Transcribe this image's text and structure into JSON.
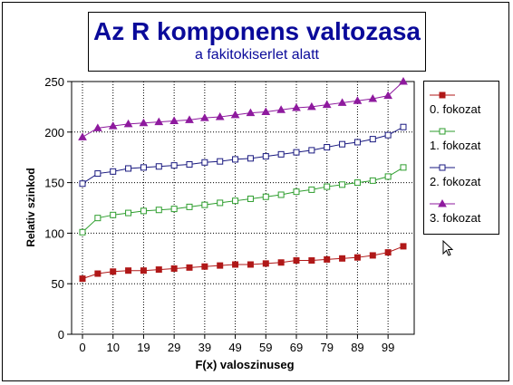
{
  "chart_data": {
    "type": "line",
    "title": "Az R komponens valtozasa",
    "subtitle": "a fakitokiserlet alatt",
    "xlabel": "F(x) valoszinuseg",
    "ylabel": "Relativ szinkod",
    "ylim": [
      0,
      250
    ],
    "yticks": [
      0,
      50,
      100,
      150,
      200,
      250
    ],
    "x_tick_labels": [
      "0",
      "10",
      "19",
      "29",
      "39",
      "49",
      "59",
      "69",
      "79",
      "89",
      "99"
    ],
    "grid": true,
    "legend_position": "right",
    "series": [
      {
        "name": "0. fokozat",
        "color": "#b01818",
        "marker": "filled-square",
        "values": [
          55,
          60,
          62,
          63,
          63,
          64,
          65,
          66,
          67,
          68,
          69,
          69,
          70,
          71,
          73,
          73,
          74,
          75,
          76,
          78,
          81,
          87
        ]
      },
      {
        "name": "1. fokozat",
        "color": "#2e9e2e",
        "marker": "hollow-square",
        "values": [
          101,
          115,
          118,
          120,
          122,
          123,
          124,
          126,
          128,
          130,
          132,
          134,
          136,
          138,
          141,
          143,
          146,
          148,
          150,
          152,
          156,
          165
        ]
      },
      {
        "name": "2. fokozat",
        "color": "#1a1a80",
        "marker": "hollow-square",
        "values": [
          149,
          159,
          161,
          164,
          165,
          166,
          167,
          168,
          170,
          171,
          173,
          174,
          176,
          178,
          180,
          182,
          185,
          188,
          190,
          193,
          197,
          205
        ]
      },
      {
        "name": "3. fokozat",
        "color": "#8e1a9e",
        "marker": "filled-triangle",
        "values": [
          195,
          204,
          206,
          208,
          209,
          210,
          211,
          212,
          214,
          215,
          217,
          219,
          220,
          222,
          224,
          225,
          227,
          229,
          231,
          233,
          236,
          250
        ]
      }
    ]
  }
}
